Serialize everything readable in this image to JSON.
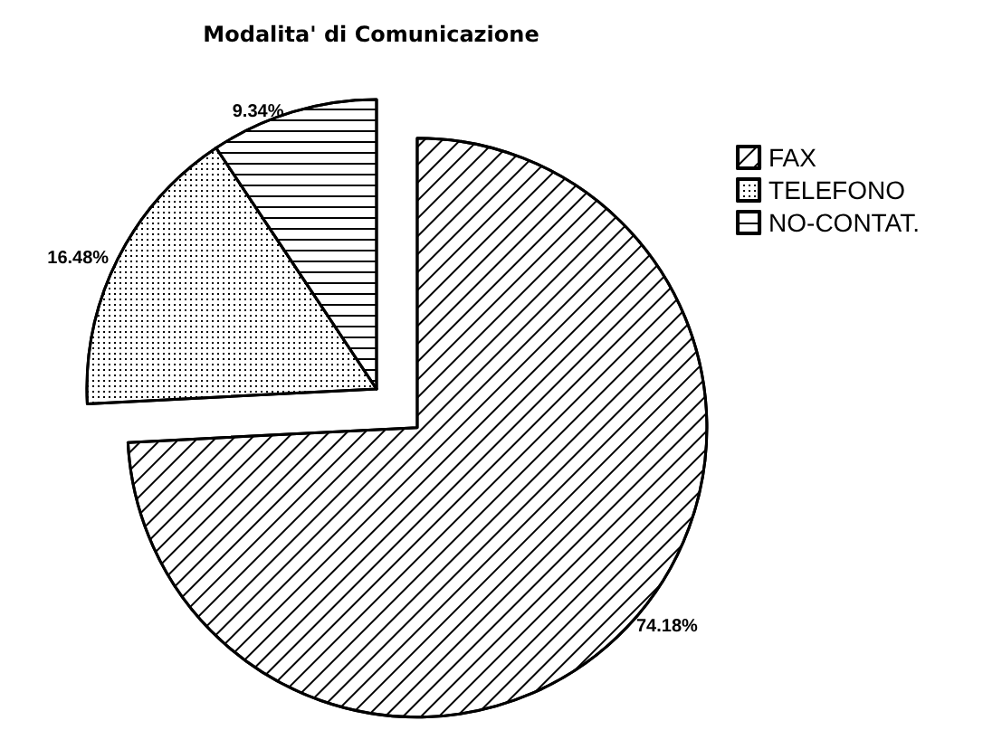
{
  "chart_data": {
    "type": "pie",
    "title": "Modalita' di Comunicazione",
    "categories": [
      "FAX",
      "TELEFONO",
      "NO-CONTAT."
    ],
    "values": [
      74.18,
      16.48,
      9.34
    ],
    "value_labels": [
      "74.18%",
      "16.48%",
      "9.34%"
    ],
    "colors": [
      "#ffffff",
      "#ffffff",
      "#ffffff"
    ],
    "legend": "right"
  }
}
